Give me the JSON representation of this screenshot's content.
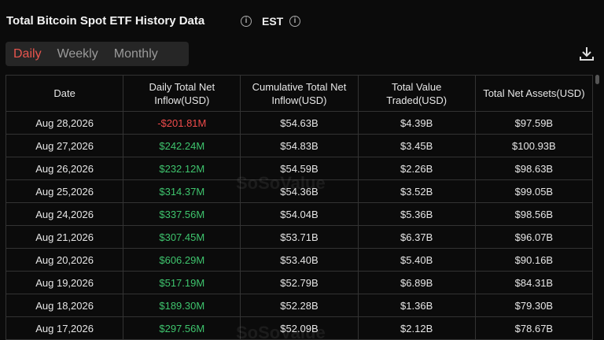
{
  "header": {
    "title": "Total Bitcoin Spot ETF History Data",
    "timezone": "EST"
  },
  "tabs": {
    "items": [
      "Daily",
      "Weekly",
      "Monthly"
    ],
    "active": 0
  },
  "watermark": "SoSoValue",
  "table": {
    "columns": [
      "Date",
      "Daily Total Net Inflow(USD)",
      "Cumulative Total Net Inflow(USD)",
      "Total Value Traded(USD)",
      "Total Net Assets(USD)"
    ],
    "rows": [
      [
        "Aug 28,2026",
        "-$201.81M",
        "$54.63B",
        "$4.39B",
        "$97.59B"
      ],
      [
        "Aug 27,2026",
        "$242.24M",
        "$54.83B",
        "$3.45B",
        "$100.93B"
      ],
      [
        "Aug 26,2026",
        "$232.12M",
        "$54.59B",
        "$2.26B",
        "$98.63B"
      ],
      [
        "Aug 25,2026",
        "$314.37M",
        "$54.36B",
        "$3.52B",
        "$99.05B"
      ],
      [
        "Aug 24,2026",
        "$337.56M",
        "$54.04B",
        "$5.36B",
        "$98.56B"
      ],
      [
        "Aug 21,2026",
        "$307.45M",
        "$53.71B",
        "$6.37B",
        "$96.07B"
      ],
      [
        "Aug 20,2026",
        "$606.29M",
        "$53.40B",
        "$5.40B",
        "$90.16B"
      ],
      [
        "Aug 19,2026",
        "$517.19M",
        "$52.79B",
        "$6.89B",
        "$84.31B"
      ],
      [
        "Aug 18,2026",
        "$189.30M",
        "$52.28B",
        "$1.36B",
        "$79.30B"
      ],
      [
        "Aug 17,2026",
        "$297.56M",
        "$52.09B",
        "$2.12B",
        "$78.67B"
      ]
    ]
  }
}
